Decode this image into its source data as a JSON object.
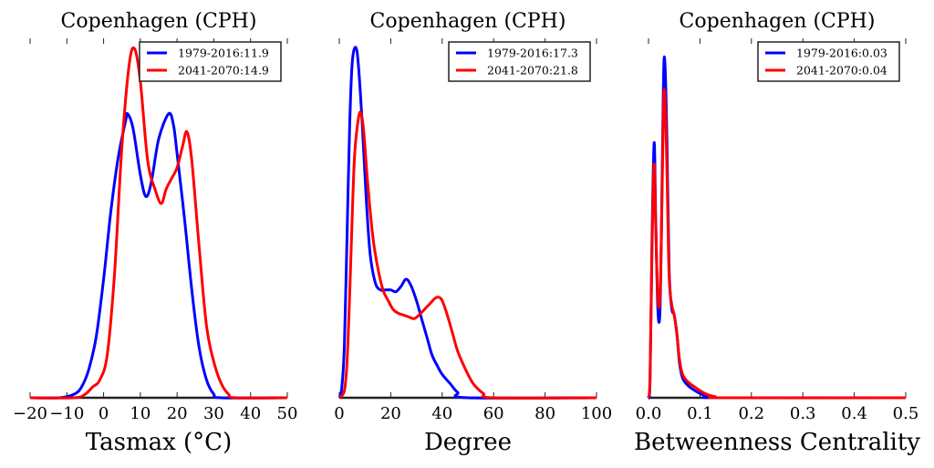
{
  "chart_data": [
    {
      "type": "line",
      "title": "Copenhagen (CPH)",
      "xlabel": "Tasmax ($^\\circ$C)",
      "xlabel_display": "Tasmax (°C)",
      "ylabel": "",
      "xlim": [
        -20,
        50
      ],
      "xticks": [
        -20,
        -10,
        0,
        10,
        20,
        30,
        40,
        50
      ],
      "xtick_labels": [
        "−20",
        "−10",
        "0",
        "10",
        "20",
        "30",
        "40",
        "50"
      ],
      "y_units": "relative density (fraction of axis height)",
      "legend_position": "top-right",
      "series": [
        {
          "name": "1979-2016:11.9",
          "color": "#0000ff",
          "x": [
            -20,
            -12,
            -8,
            -6,
            -4,
            -2,
            0,
            2,
            4,
            6,
            6.5,
            8,
            10,
            11.5,
            13,
            15,
            17.7,
            19,
            20,
            22,
            24,
            26,
            28,
            30,
            32,
            50
          ],
          "y": [
            0,
            0,
            0.01,
            0.03,
            0.08,
            0.17,
            0.33,
            0.52,
            0.67,
            0.77,
            0.79,
            0.75,
            0.62,
            0.56,
            0.6,
            0.72,
            0.79,
            0.76,
            0.68,
            0.5,
            0.3,
            0.14,
            0.05,
            0.01,
            0,
            0
          ]
        },
        {
          "name": "2041-2070:14.9",
          "color": "#ff0000",
          "x": [
            -20,
            -8,
            -5,
            -3,
            -1,
            1,
            3,
            5,
            7,
            8.5,
            10,
            12,
            14,
            15.7,
            17,
            18.5,
            20,
            21.5,
            22.7,
            24,
            26,
            28,
            30,
            32,
            34,
            36,
            50
          ],
          "y": [
            0,
            0,
            0.01,
            0.03,
            0.05,
            0.12,
            0.35,
            0.7,
            0.93,
            0.97,
            0.88,
            0.66,
            0.58,
            0.54,
            0.58,
            0.61,
            0.64,
            0.7,
            0.74,
            0.66,
            0.42,
            0.2,
            0.1,
            0.04,
            0.01,
            0,
            0
          ]
        }
      ]
    },
    {
      "type": "line",
      "title": "Copenhagen (CPH)",
      "xlabel": "Degree",
      "ylabel": "",
      "xlim": [
        0,
        100
      ],
      "xticks": [
        0,
        20,
        40,
        60,
        80,
        100
      ],
      "xtick_labels": [
        "0",
        "20",
        "40",
        "60",
        "80",
        "100"
      ],
      "y_units": "relative density (fraction of axis height)",
      "legend_position": "top-right",
      "series": [
        {
          "name": "1979-2016:17.3",
          "color": "#0000ff",
          "x": [
            0,
            1,
            2,
            3,
            4,
            5,
            6.4,
            7.5,
            9,
            10.5,
            12,
            14,
            16,
            18,
            20,
            22,
            24,
            26,
            28,
            30,
            32,
            34,
            36,
            38,
            40,
            43,
            46,
            50,
            100
          ],
          "y": [
            0,
            0.03,
            0.15,
            0.45,
            0.75,
            0.93,
            0.975,
            0.92,
            0.75,
            0.55,
            0.4,
            0.32,
            0.3,
            0.3,
            0.3,
            0.295,
            0.31,
            0.33,
            0.31,
            0.27,
            0.22,
            0.17,
            0.12,
            0.09,
            0.065,
            0.04,
            0.015,
            0,
            0
          ]
        },
        {
          "name": "2041-2070:21.8",
          "color": "#ff0000",
          "x": [
            0,
            2,
            3,
            4,
            5,
            6,
            7.5,
            8.5,
            9.5,
            11,
            13,
            15,
            17,
            19,
            21,
            23,
            25,
            27,
            29,
            31,
            33,
            35,
            37,
            38.5,
            40,
            42,
            44,
            46,
            49,
            52,
            56,
            60,
            100
          ],
          "y": [
            0,
            0.02,
            0.1,
            0.28,
            0.5,
            0.68,
            0.78,
            0.79,
            0.74,
            0.6,
            0.45,
            0.36,
            0.3,
            0.27,
            0.245,
            0.235,
            0.23,
            0.225,
            0.22,
            0.23,
            0.245,
            0.26,
            0.275,
            0.28,
            0.27,
            0.23,
            0.18,
            0.13,
            0.08,
            0.04,
            0.012,
            0,
            0
          ]
        }
      ]
    },
    {
      "type": "line",
      "title": "Copenhagen (CPH)",
      "xlabel": "Betweenness Centrality",
      "ylabel": "",
      "xlim": [
        0,
        0.5
      ],
      "xticks": [
        0.0,
        0.1,
        0.2,
        0.3,
        0.4,
        0.5
      ],
      "xtick_labels": [
        "0.0",
        "0.1",
        "0.2",
        "0.3",
        "0.4",
        "0.5"
      ],
      "y_units": "relative density (fraction of axis height)",
      "legend_position": "top-right",
      "series": [
        {
          "name": "1979-2016:0.03",
          "color": "#0000ff",
          "x": [
            0,
            0.003,
            0.007,
            0.011,
            0.014,
            0.018,
            0.022,
            0.025,
            0.029,
            0.032,
            0.036,
            0.04,
            0.045,
            0.05,
            0.055,
            0.06,
            0.065,
            0.07,
            0.08,
            0.09,
            0.1,
            0.11,
            0.12,
            0.14,
            0.5
          ],
          "y": [
            0,
            0.05,
            0.45,
            0.71,
            0.5,
            0.25,
            0.23,
            0.45,
            0.88,
            0.93,
            0.7,
            0.36,
            0.25,
            0.23,
            0.18,
            0.1,
            0.06,
            0.045,
            0.03,
            0.02,
            0.012,
            0.005,
            0.002,
            0,
            0
          ]
        },
        {
          "name": "2041-2070:0.04",
          "color": "#ff0000",
          "x": [
            0,
            0.003,
            0.007,
            0.011,
            0.014,
            0.018,
            0.022,
            0.025,
            0.029,
            0.032,
            0.036,
            0.04,
            0.045,
            0.05,
            0.055,
            0.06,
            0.065,
            0.07,
            0.08,
            0.09,
            0.1,
            0.11,
            0.12,
            0.13,
            0.15,
            0.5
          ],
          "y": [
            0,
            0.06,
            0.43,
            0.65,
            0.48,
            0.28,
            0.27,
            0.45,
            0.8,
            0.84,
            0.62,
            0.34,
            0.26,
            0.23,
            0.18,
            0.11,
            0.07,
            0.055,
            0.04,
            0.03,
            0.02,
            0.012,
            0.006,
            0.003,
            0,
            0
          ]
        }
      ]
    }
  ]
}
